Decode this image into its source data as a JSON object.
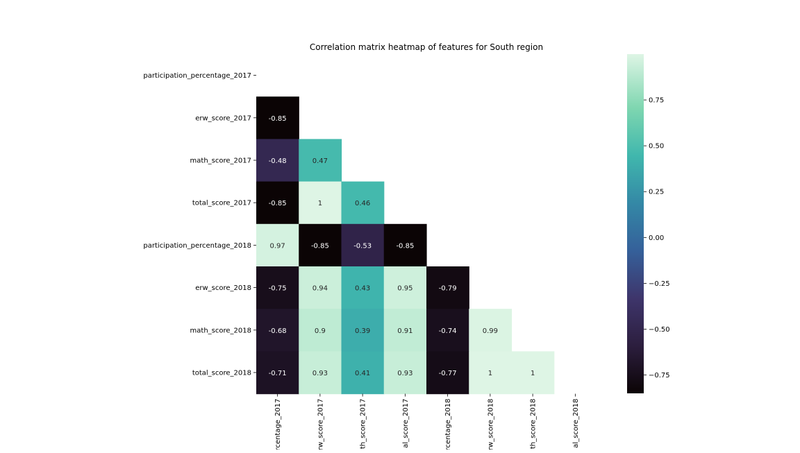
{
  "chart_data": {
    "type": "heatmap",
    "title": "Correlation matrix heatmap of features for South region",
    "y_labels": [
      "participation_percentage_2017",
      "erw_score_2017",
      "math_score_2017",
      "total_score_2017",
      "participation_percentage_2018",
      "erw_score_2018",
      "math_score_2018",
      "total_score_2018"
    ],
    "x_labels_visible": [
      "rcentage_2017",
      "erw_score_2017",
      "th_score_2017",
      "al_score_2017",
      "rcentage_2018",
      "rw_score_2018",
      "th_score_2018",
      "al_score_2018"
    ],
    "mask": "upper-triangle-including-diagonal",
    "cells": [
      [
        null,
        null,
        null,
        null,
        null,
        null,
        null,
        null
      ],
      [
        -0.85,
        null,
        null,
        null,
        null,
        null,
        null,
        null
      ],
      [
        -0.48,
        0.47,
        null,
        null,
        null,
        null,
        null,
        null
      ],
      [
        -0.85,
        1,
        0.46,
        null,
        null,
        null,
        null,
        null
      ],
      [
        0.97,
        -0.85,
        -0.53,
        -0.85,
        null,
        null,
        null,
        null
      ],
      [
        -0.75,
        0.94,
        0.43,
        0.95,
        -0.79,
        null,
        null,
        null
      ],
      [
        -0.68,
        0.9,
        0.39,
        0.91,
        -0.74,
        0.99,
        null,
        null
      ],
      [
        -0.71,
        0.93,
        0.41,
        0.93,
        -0.77,
        1,
        1,
        null
      ]
    ],
    "colormap": "mako",
    "colorbar": {
      "range": [
        -0.85,
        1
      ],
      "ticks": [
        0.75,
        0.5,
        0.25,
        0.0,
        -0.25,
        -0.5,
        -0.75
      ],
      "tick_labels": [
        "0.75",
        "0.50",
        "0.25",
        "0.00",
        "−0.25",
        "−0.50",
        "−0.75"
      ]
    }
  }
}
